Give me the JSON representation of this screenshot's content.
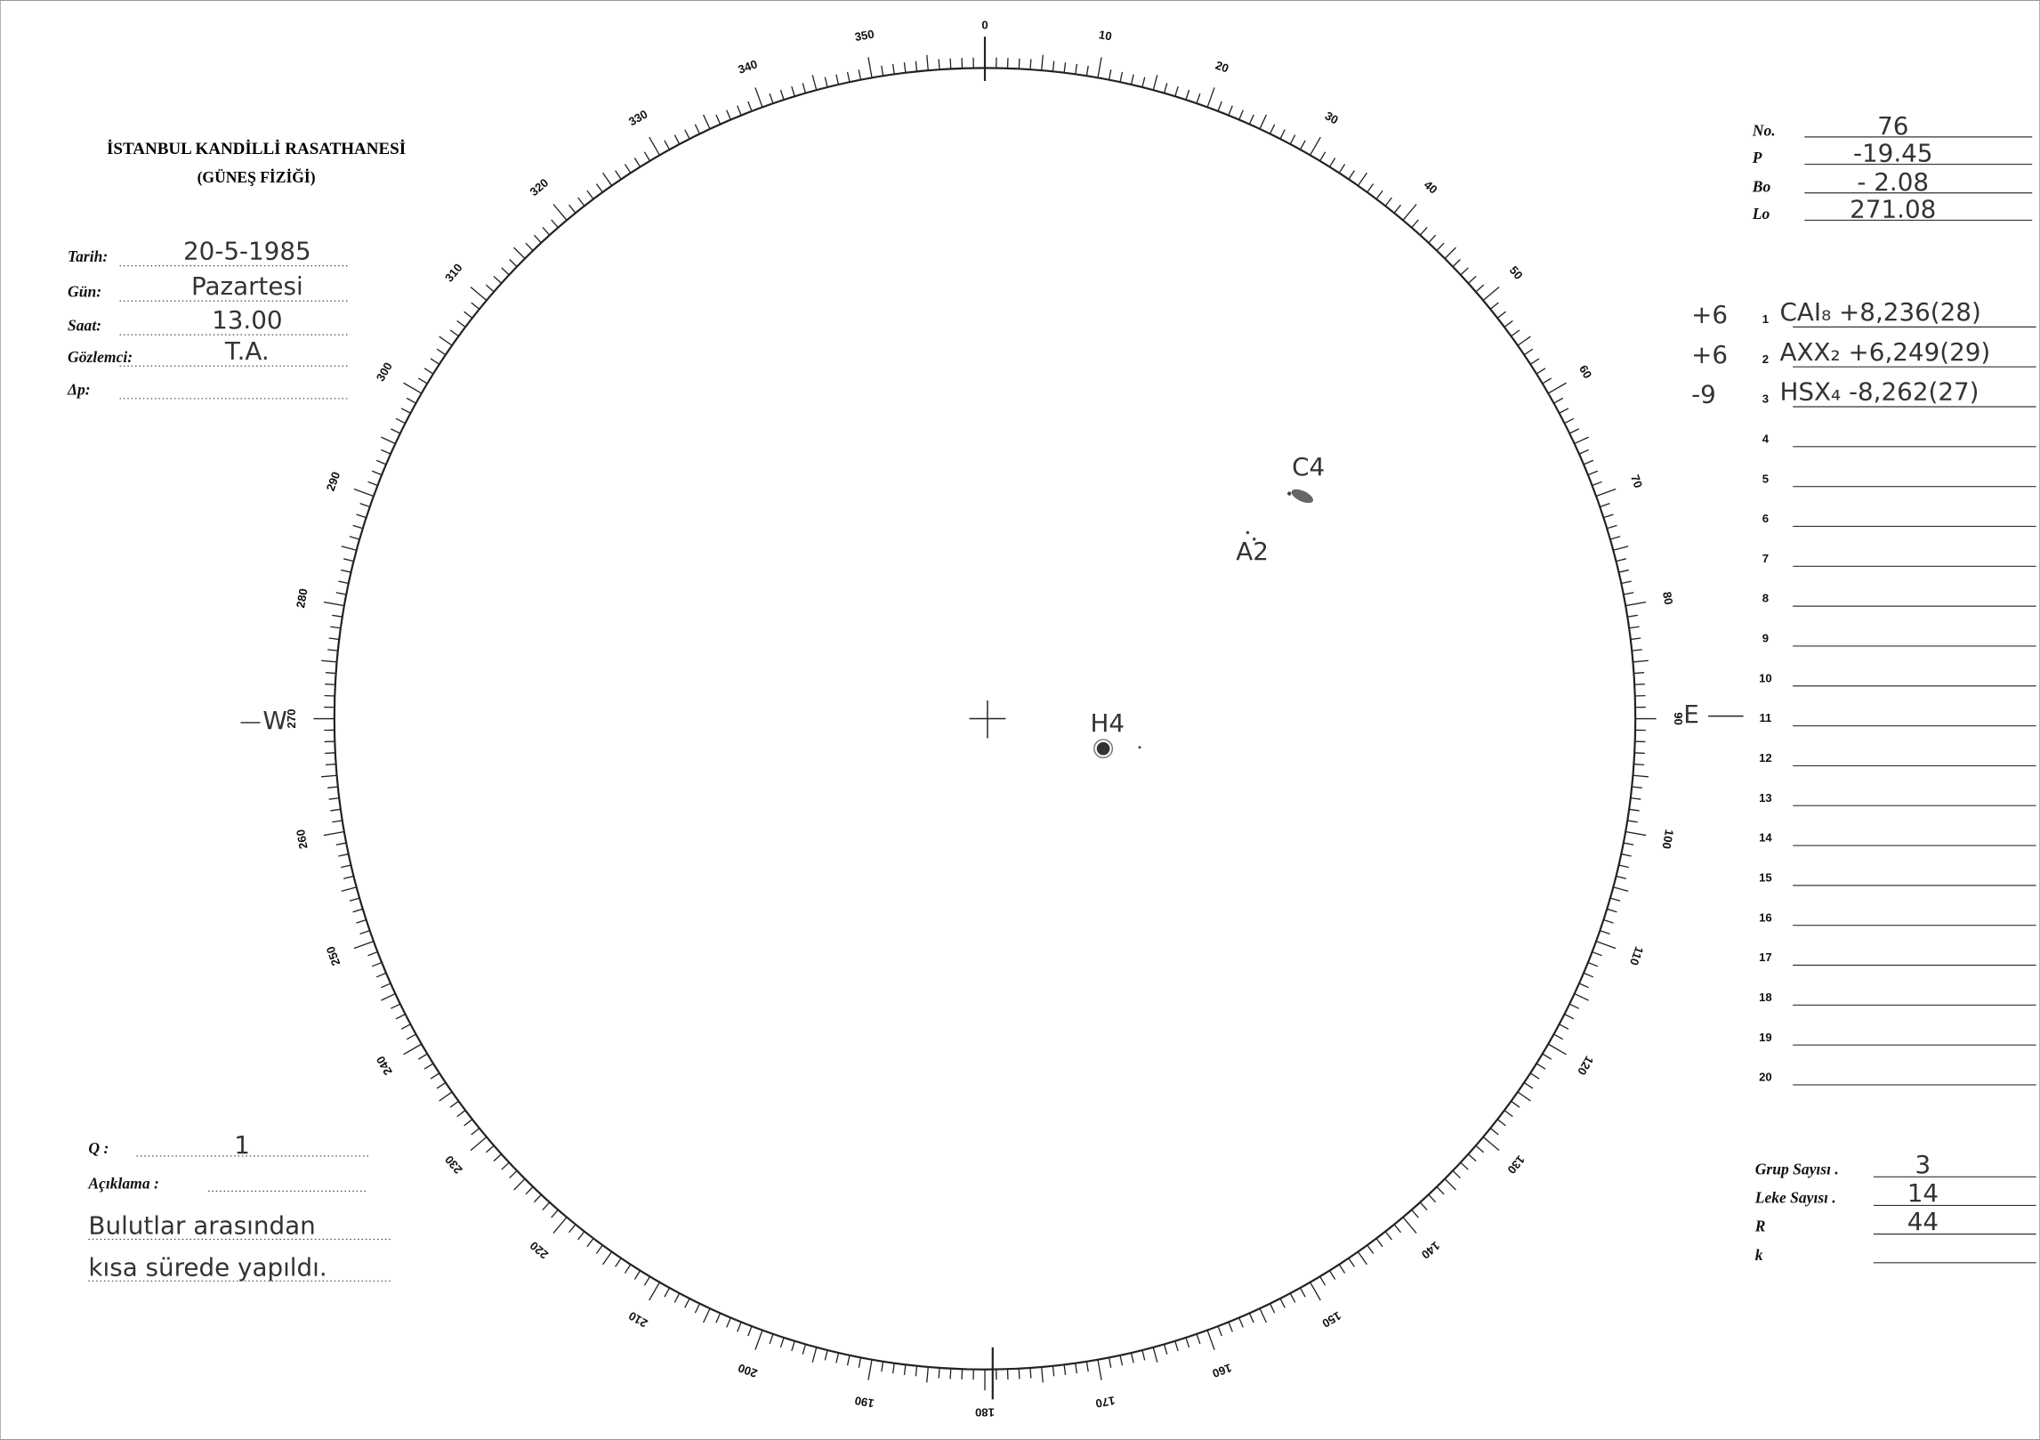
{
  "header": {
    "title": "İSTANBUL KANDİLLİ RASATHANESİ",
    "subtitle": "(GÜNEŞ FİZİĞİ)"
  },
  "fields": [
    {
      "label": "Tarih:",
      "value": "20-5-1985"
    },
    {
      "label": "Gün:",
      "value": "Pazartesi"
    },
    {
      "label": "Saat:",
      "value": "13.00"
    },
    {
      "label": "Gözlemci:",
      "value": "T.A."
    },
    {
      "label": "Δp:"
    }
  ],
  "parameters": [
    {
      "label": "No.",
      "value": "76"
    },
    {
      "label": "P",
      "value": "-19.45"
    },
    {
      "label": "Bo",
      "value": "- 2.08"
    },
    {
      "label": "Lo",
      "value": "271.08"
    }
  ],
  "groups": {
    "rows": [
      {
        "number": 1,
        "sign": "+6",
        "entry": "CAI₈ +8,236(28)"
      },
      {
        "number": 2,
        "sign": "+6",
        "entry": "AXX₂ +6,249(29)"
      },
      {
        "number": 3,
        "sign": "-9",
        "entry": "HSX₄ -8,262(27)"
      },
      {
        "number": 4
      },
      {
        "number": 5
      },
      {
        "number": 6
      },
      {
        "number": 7
      },
      {
        "number": 8
      },
      {
        "number": 9
      },
      {
        "number": 10
      },
      {
        "number": 11
      },
      {
        "number": 12
      },
      {
        "number": 13
      },
      {
        "number": 14
      },
      {
        "number": 15
      },
      {
        "number": 16
      },
      {
        "number": 17
      },
      {
        "number": 18
      },
      {
        "number": 19
      },
      {
        "number": 20
      }
    ]
  },
  "summary": [
    {
      "label": "Grup Sayısı .",
      "value": "3"
    },
    {
      "label": "Leke Sayısı .",
      "value": "14"
    },
    {
      "label": "R",
      "value": "44"
    },
    {
      "label": "k"
    }
  ],
  "quality": {
    "label": "Q :",
    "value": "1"
  },
  "remarks": {
    "label": "Açıklama :",
    "lines": [
      "Bulutlar arasından",
      "kısa sürede yapıldı."
    ]
  },
  "dial": {
    "labels": [
      0,
      10,
      20,
      30,
      40,
      50,
      60,
      70,
      80,
      90,
      100,
      110,
      120,
      130,
      140,
      150,
      160,
      170,
      180,
      190,
      200,
      210,
      220,
      230,
      240,
      250,
      260,
      270,
      280,
      290,
      300,
      310,
      320,
      330,
      340,
      350
    ],
    "west": "W",
    "east": "E"
  },
  "annotations": [
    "C4",
    "A2",
    "H4"
  ]
}
